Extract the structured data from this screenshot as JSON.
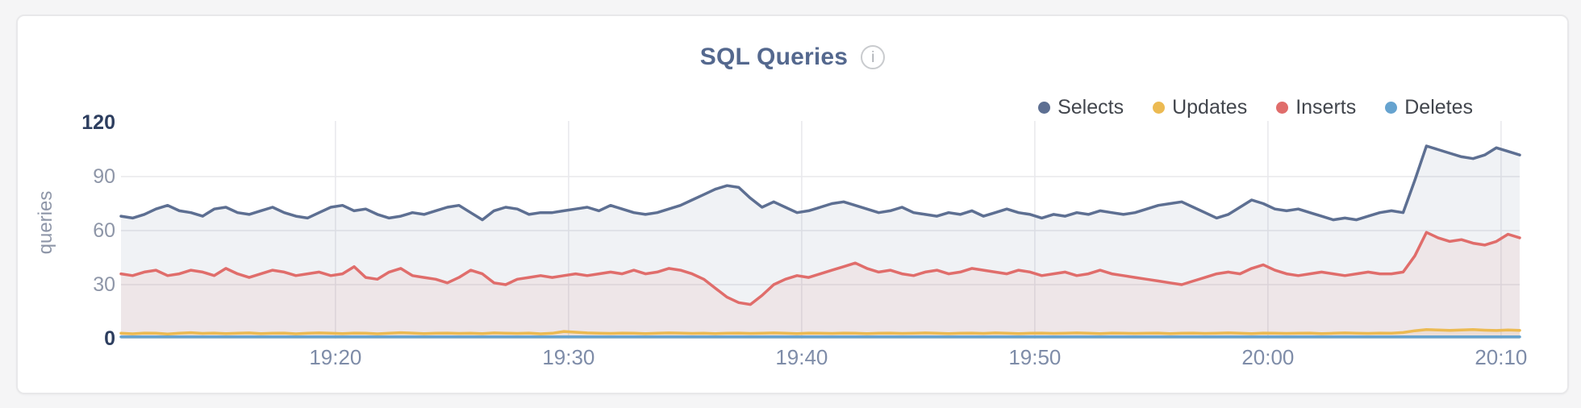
{
  "header": {
    "title": "SQL Queries",
    "info_glyph": "i"
  },
  "chart_data": {
    "type": "area",
    "title": "SQL Queries",
    "ylabel": "queries",
    "ylim": [
      0,
      120
    ],
    "y_ticks": [
      0,
      30,
      60,
      90,
      120
    ],
    "y_ticks_emphasized": [
      0,
      120
    ],
    "grid": true,
    "legend_position": "top-right",
    "x_axis": {
      "unit": "minutes after 19:00",
      "start": 10.8,
      "step": 0.5,
      "points": 121
    },
    "x_ticks": [
      {
        "minute": 20,
        "label": "19:20"
      },
      {
        "minute": 30,
        "label": "19:30"
      },
      {
        "minute": 40,
        "label": "19:40"
      },
      {
        "minute": 50,
        "label": "19:50"
      },
      {
        "minute": 60,
        "label": "20:00"
      },
      {
        "minute": 70,
        "label": "20:10"
      }
    ],
    "series": [
      {
        "name": "Selects",
        "color": "#5d6f92",
        "fill": "rgba(92,110,145,0.09)",
        "values": [
          68,
          67,
          69,
          72,
          74,
          71,
          70,
          68,
          72,
          73,
          70,
          69,
          71,
          73,
          70,
          68,
          67,
          70,
          73,
          74,
          71,
          72,
          69,
          67,
          68,
          70,
          69,
          71,
          73,
          74,
          70,
          66,
          71,
          73,
          72,
          69,
          70,
          70,
          71,
          72,
          73,
          71,
          74,
          72,
          70,
          69,
          70,
          72,
          74,
          77,
          80,
          83,
          85,
          84,
          78,
          73,
          76,
          73,
          70,
          71,
          73,
          75,
          76,
          74,
          72,
          70,
          71,
          73,
          70,
          69,
          68,
          70,
          69,
          71,
          68,
          70,
          72,
          70,
          69,
          67,
          69,
          68,
          70,
          69,
          71,
          70,
          69,
          70,
          72,
          74,
          75,
          76,
          73,
          70,
          67,
          69,
          73,
          77,
          75,
          72,
          71,
          72,
          70,
          68,
          66,
          67,
          66,
          68,
          70,
          71,
          70,
          88,
          107,
          105,
          103,
          101,
          100,
          102,
          106,
          104,
          102
        ]
      },
      {
        "name": "Updates",
        "color": "#ecba52",
        "fill": "rgba(236,184,82,0.12)",
        "values": [
          3,
          2.7,
          3.1,
          3,
          2.6,
          3,
          3.3,
          2.9,
          3.1,
          2.8,
          3,
          3.2,
          2.8,
          3,
          3.1,
          2.7,
          3,
          3.2,
          3,
          2.8,
          3.1,
          3,
          2.7,
          3,
          3.3,
          3.1,
          2.8,
          3,
          3.1,
          2.9,
          3,
          2.8,
          3.2,
          3,
          2.9,
          3.1,
          2.7,
          3,
          4,
          3.6,
          3.2,
          3,
          2.9,
          3.1,
          3,
          2.8,
          3,
          3.2,
          3.1,
          2.9,
          3,
          2.8,
          3,
          3.1,
          2.9,
          3,
          3.2,
          3,
          2.8,
          3.1,
          3,
          2.9,
          3.1,
          3,
          2.8,
          3,
          3.1,
          2.9,
          3,
          3.2,
          3,
          2.8,
          3,
          3.1,
          2.9,
          3.2,
          3,
          2.8,
          3,
          3.1,
          2.9,
          3,
          3.2,
          3,
          2.8,
          3.1,
          3,
          2.9,
          3,
          3.1,
          2.8,
          3,
          3.1,
          2.9,
          3,
          3.2,
          3,
          2.8,
          3.1,
          3,
          2.9,
          3,
          3.1,
          2.8,
          3,
          3.2,
          3,
          2.9,
          3.1,
          3,
          3.4,
          4.4,
          5,
          4.8,
          4.6,
          4.8,
          5,
          4.7,
          4.5,
          4.8,
          4.6
        ]
      },
      {
        "name": "Inserts",
        "color": "#e06d6b",
        "fill": "rgba(224,109,107,0.09)",
        "values": [
          36,
          35,
          37,
          38,
          35,
          36,
          38,
          37,
          35,
          39,
          36,
          34,
          36,
          38,
          37,
          35,
          36,
          37,
          35,
          36,
          40,
          34,
          33,
          37,
          39,
          35,
          34,
          33,
          31,
          34,
          38,
          36,
          31,
          30,
          33,
          34,
          35,
          34,
          35,
          36,
          35,
          36,
          37,
          36,
          38,
          36,
          37,
          39,
          38,
          36,
          33,
          28,
          23,
          20,
          19,
          24,
          30,
          33,
          35,
          34,
          36,
          38,
          40,
          42,
          39,
          37,
          38,
          36,
          35,
          37,
          38,
          36,
          37,
          39,
          38,
          37,
          36,
          38,
          37,
          35,
          36,
          37,
          35,
          36,
          38,
          36,
          35,
          34,
          33,
          32,
          31,
          30,
          32,
          34,
          36,
          37,
          36,
          39,
          41,
          38,
          36,
          35,
          36,
          37,
          36,
          35,
          36,
          37,
          36,
          36,
          37,
          46,
          59,
          56,
          54,
          55,
          53,
          52,
          54,
          58,
          56
        ]
      },
      {
        "name": "Deletes",
        "color": "#66a3cf",
        "fill": "rgba(102,163,207,0.18)",
        "values": [
          1,
          1,
          1,
          1,
          1,
          1,
          1,
          1,
          1,
          1,
          1,
          1,
          1,
          1,
          1,
          1,
          1,
          1,
          1,
          1,
          1,
          1,
          1,
          1,
          1,
          1,
          1,
          1,
          1,
          1,
          1,
          1,
          1,
          1,
          1,
          1,
          1,
          1,
          1,
          1,
          1,
          1,
          1,
          1,
          1,
          1,
          1,
          1,
          1,
          1,
          1,
          1,
          1,
          1,
          1,
          1,
          1,
          1,
          1,
          1,
          1,
          1,
          1,
          1,
          1,
          1,
          1,
          1,
          1,
          1,
          1,
          1,
          1,
          1,
          1,
          1,
          1,
          1,
          1,
          1,
          1,
          1,
          1,
          1,
          1,
          1,
          1,
          1,
          1,
          1,
          1,
          1,
          1,
          1,
          1,
          1,
          1,
          1,
          1,
          1,
          1,
          1,
          1,
          1,
          1,
          1,
          1,
          1,
          1,
          1,
          1,
          1,
          1,
          1,
          1,
          1,
          1,
          1,
          1,
          1,
          1
        ]
      }
    ]
  },
  "layout_colors": {
    "page_bg": "#f5f5f6",
    "card_bg": "#ffffff",
    "card_border": "#e8e8ea",
    "grid": "#e8e8ec",
    "title": "#54688e",
    "axis_text": "#8e96a8",
    "axis_text_strong": "#2d3e5f",
    "x_text": "#7e8ca8",
    "legend_text": "#42464d"
  }
}
